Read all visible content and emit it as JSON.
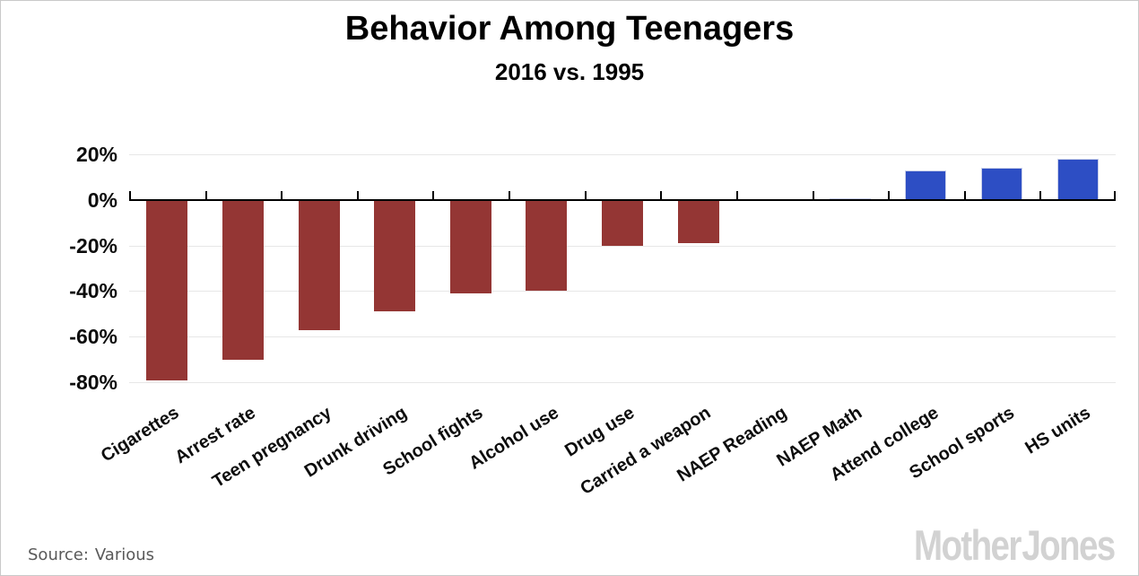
{
  "header": {
    "title": "Behavior Among Teenagers",
    "subtitle": "2016 vs. 1995"
  },
  "footer": {
    "source_label": "Source:",
    "source_value": "Various",
    "logo": "Mother Jones"
  },
  "chart_data": {
    "type": "bar",
    "title": "Behavior Among Teenagers",
    "subtitle": "2016 vs. 1995",
    "categories": [
      "Cigarettes",
      "Arrest rate",
      "Teen pregnancy",
      "Drunk driving",
      "School fights",
      "Alcohol use",
      "Drug use",
      "Carried a weapon",
      "NAEP Reading",
      "NAEP Math",
      "Attend college",
      "School sports",
      "HS units"
    ],
    "values": [
      -79,
      -70,
      -57,
      -49,
      -41,
      -40,
      -20,
      -19,
      0,
      0.5,
      13,
      14,
      18
    ],
    "unit": "%",
    "y_ticks": [
      {
        "label": "20%",
        "value": 20
      },
      {
        "label": "0%",
        "value": 0
      },
      {
        "label": "-20%",
        "value": -20
      },
      {
        "label": "-40%",
        "value": -40
      },
      {
        "label": "-60%",
        "value": -60
      },
      {
        "label": "-80%",
        "value": -80
      }
    ],
    "ylim": [
      -85,
      25
    ],
    "grid": true,
    "legend": false,
    "xlabel": "",
    "ylabel": "",
    "negative_color": "#943634",
    "positive_color": "#2d4ec4",
    "positive_border_color": "#c9cfe9",
    "grid_color": "#e7e7e7",
    "axis_color": "#000000",
    "source_text": "Source: Various",
    "branding": "Mother Jones"
  }
}
